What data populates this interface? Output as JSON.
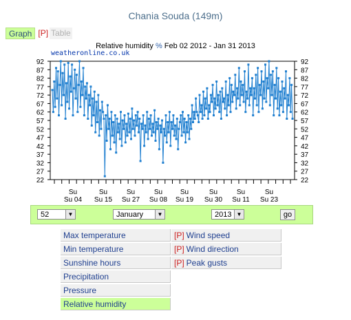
{
  "station": {
    "title": "Chania Souda (149m)"
  },
  "tabs": {
    "graph": "Graph",
    "premium": "[P]",
    "table": "Table"
  },
  "chart_header": {
    "prefix": "Relative humidity",
    "unit": "%",
    "range": "Feb 02 2012 - Jan 31 2013"
  },
  "watermark": "weatheronline.co.uk",
  "chart_data": {
    "type": "line",
    "title": "Relative humidity % Feb 02 2012 - Jan 31 2013",
    "y_ticks": [
      92,
      87,
      82,
      77,
      72,
      67,
      62,
      57,
      52,
      47,
      42,
      37,
      32,
      27,
      22
    ],
    "ylim": [
      22,
      92
    ],
    "x_tick_labels": [
      "Su 04",
      "Su 15",
      "Su 27",
      "Su 08",
      "Su 19",
      "Su 30",
      "Su 11",
      "Su 23"
    ],
    "series": [
      {
        "values": [
          75,
          62,
          80,
          65,
          88,
          70,
          86,
          60,
          78,
          92,
          66,
          85,
          72,
          90,
          58,
          79,
          68,
          91,
          64,
          83,
          74,
          90,
          60,
          76,
          87,
          70,
          84,
          62,
          78,
          92,
          65,
          80,
          72,
          88,
          60,
          77,
          70,
          79,
          58,
          72,
          66,
          77,
          54,
          70,
          60,
          74,
          50,
          68,
          56,
          72,
          48,
          63,
          52,
          68,
          62,
          58,
          24,
          60,
          45,
          66,
          52,
          58,
          40,
          62,
          48,
          56,
          44,
          60,
          38,
          58,
          50,
          55,
          46,
          62,
          42,
          57,
          52,
          60,
          44,
          55,
          48,
          61,
          50,
          58,
          46,
          64,
          52,
          57,
          48,
          60,
          54,
          62,
          50,
          58,
          33,
          55,
          52,
          60,
          42,
          54,
          50,
          62,
          46,
          58,
          52,
          60,
          48,
          55,
          50,
          63,
          45,
          56,
          52,
          58,
          40,
          54,
          50,
          57,
          32,
          52,
          48,
          60,
          44,
          56,
          50,
          62,
          42,
          56,
          52,
          60,
          48,
          54,
          46,
          58,
          40,
          52,
          56,
          60,
          48,
          62,
          50,
          58,
          44,
          56,
          50,
          60,
          46,
          58,
          52,
          66,
          56,
          62,
          58,
          70,
          62,
          60,
          56,
          72,
          62,
          66,
          58,
          74,
          60,
          70,
          64,
          76,
          58,
          66,
          62,
          72,
          68,
          78,
          60,
          70,
          64,
          80,
          66,
          72,
          62,
          74,
          58,
          76,
          68,
          70,
          64,
          80,
          60,
          72,
          66,
          82,
          62,
          78,
          68,
          74,
          72,
          84,
          64,
          76,
          70,
          88,
          66,
          80,
          72,
          78,
          68,
          86,
          62,
          74,
          70,
          90,
          66,
          76,
          72,
          82,
          60,
          76,
          70,
          84,
          66,
          88,
          62,
          78,
          72,
          86,
          64,
          80,
          70,
          90,
          68,
          82,
          76,
          92,
          66,
          84,
          72,
          86,
          60,
          78,
          70,
          88,
          64,
          82,
          60,
          74,
          66,
          80,
          62,
          76,
          70,
          86,
          58,
          72,
          66,
          82,
          62,
          78,
          58
        ]
      }
    ]
  },
  "controls": {
    "day": "52",
    "month": "January",
    "year": "2013",
    "go": "go"
  },
  "menu": {
    "left": [
      "Max temperature",
      "Min temperature",
      "Sunshine hours",
      "Precipitation",
      "Pressure",
      "Relative humidity"
    ],
    "right": [
      "Wind speed",
      "Wind direction",
      "Peak gusts"
    ],
    "premium_tag": "[P]"
  }
}
